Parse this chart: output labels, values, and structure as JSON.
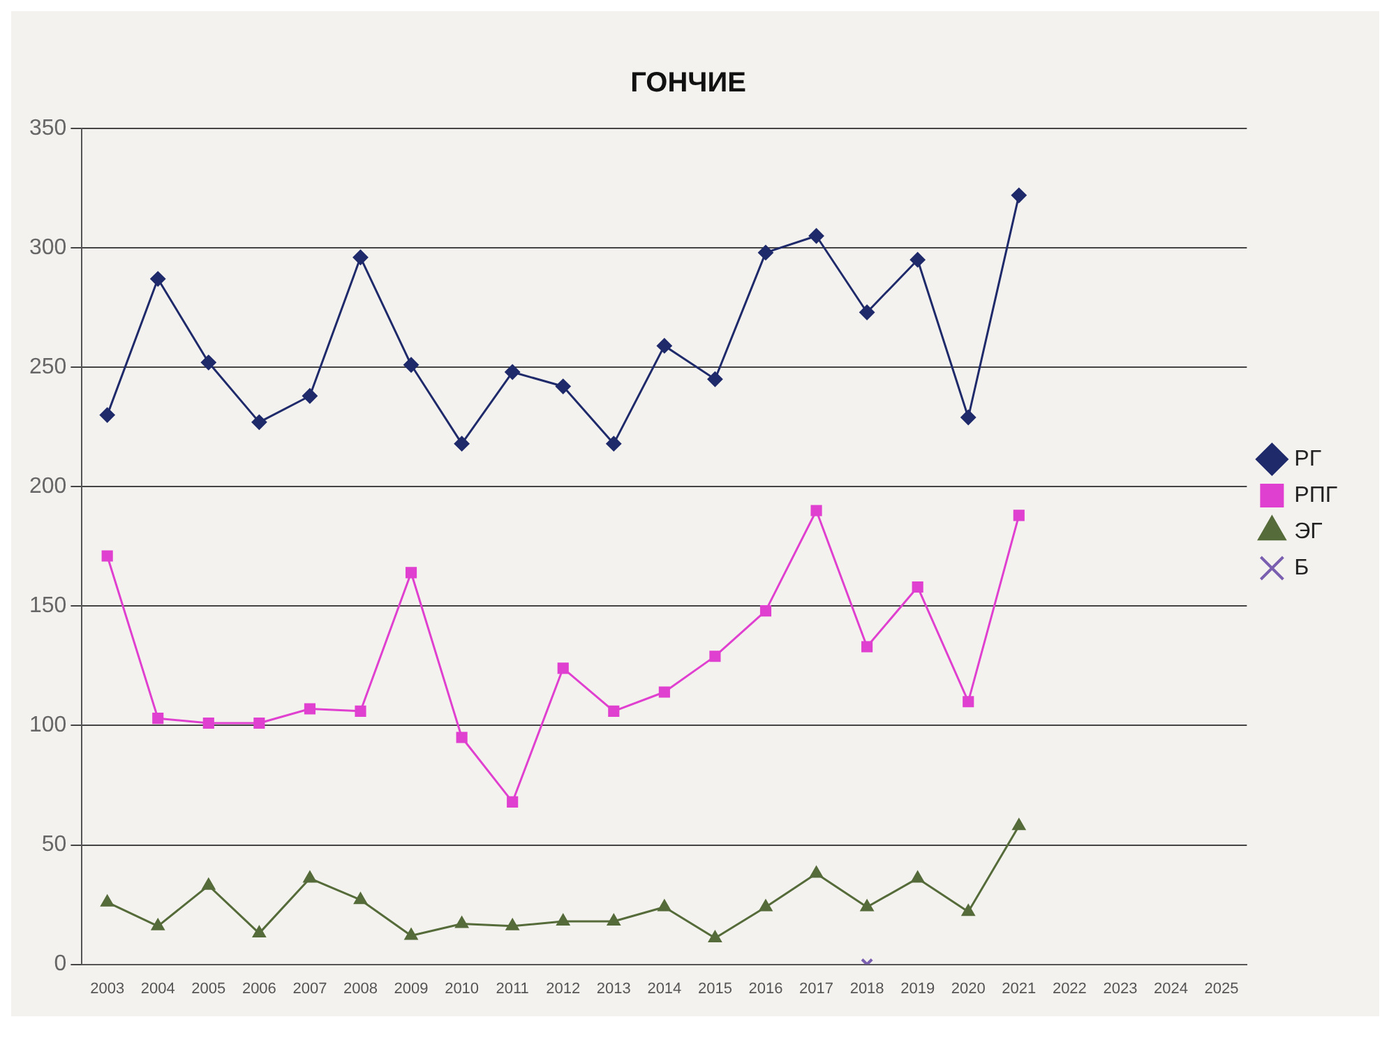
{
  "chart_data": {
    "type": "line",
    "title": "ГОНЧИЕ",
    "categories": [
      "2003",
      "2004",
      "2005",
      "2006",
      "2007",
      "2008",
      "2009",
      "2010",
      "2011",
      "2012",
      "2013",
      "2014",
      "2015",
      "2016",
      "2017",
      "2018",
      "2019",
      "2020",
      "2021",
      "2022",
      "2023",
      "2024",
      "2025"
    ],
    "series": [
      {
        "name": "РГ",
        "color": "#1f2a6b",
        "marker": "diamond",
        "values": [
          230,
          287,
          252,
          227,
          238,
          296,
          251,
          218,
          248,
          242,
          218,
          259,
          245,
          298,
          305,
          273,
          295,
          229,
          322,
          null,
          null,
          null,
          null
        ]
      },
      {
        "name": "РПГ",
        "color": "#e040d0",
        "marker": "square",
        "values": [
          171,
          103,
          101,
          101,
          107,
          106,
          164,
          95,
          68,
          124,
          106,
          114,
          129,
          148,
          190,
          133,
          158,
          110,
          188,
          null,
          null,
          null,
          null
        ]
      },
      {
        "name": "ЭГ",
        "color": "#556b3a",
        "marker": "triangle",
        "values": [
          26,
          16,
          33,
          13,
          36,
          27,
          12,
          17,
          16,
          18,
          18,
          24,
          11,
          24,
          38,
          24,
          36,
          22,
          58,
          null,
          null,
          null,
          null
        ]
      },
      {
        "name": "Б",
        "color": "#7a5fb0",
        "marker": "cross",
        "values": [
          null,
          null,
          null,
          null,
          null,
          null,
          null,
          null,
          null,
          null,
          null,
          null,
          null,
          null,
          null,
          0,
          null,
          null,
          null,
          null,
          null,
          null,
          null
        ]
      }
    ],
    "ylim": [
      0,
      350
    ],
    "yticks": [
      0,
      50,
      100,
      150,
      200,
      250,
      300,
      350
    ],
    "grid": "y",
    "legend": "right"
  }
}
